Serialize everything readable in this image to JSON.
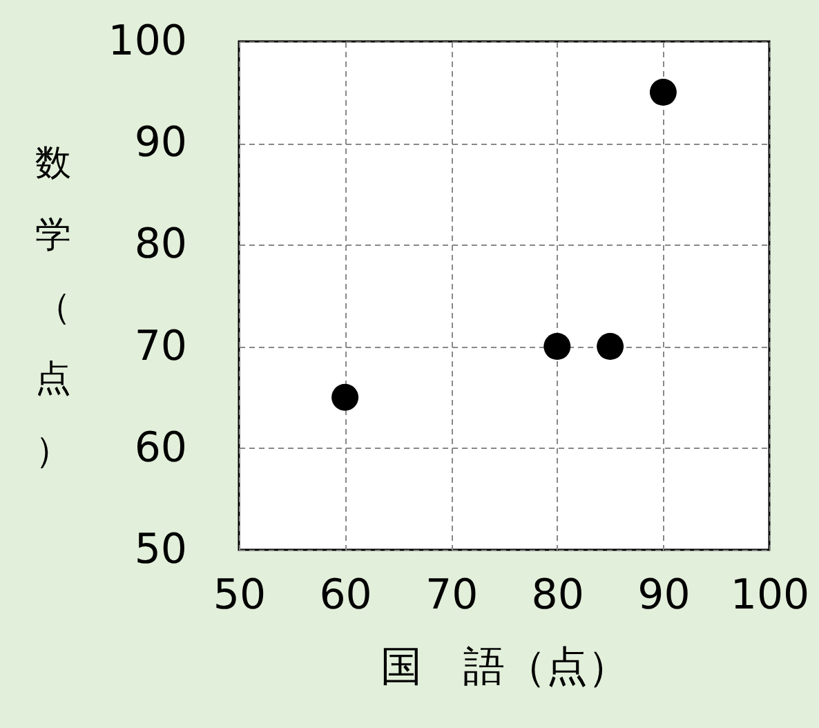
{
  "chart_data": {
    "type": "scatter",
    "xlabel": "国　語（点）",
    "ylabel": "数学（点）",
    "x": [
      60,
      80,
      85,
      90
    ],
    "series": [
      {
        "color": "#000000",
        "values": [
          65,
          70,
          70,
          95
        ]
      }
    ],
    "xlim": [
      50,
      100
    ],
    "ylim": [
      50,
      100
    ],
    "xticks": [
      50,
      60,
      70,
      80,
      90,
      100
    ],
    "yticks": [
      50,
      60,
      70,
      80,
      90,
      100
    ],
    "grid": true,
    "marker": "circle",
    "legend": false
  }
}
